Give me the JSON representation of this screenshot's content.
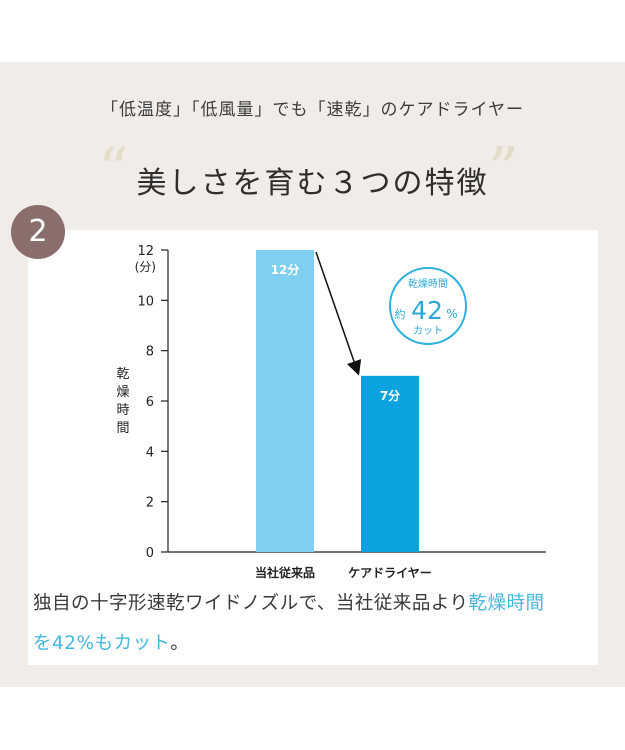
{
  "subtitle": "「低温度」「低風量」でも「速乾」のケアドライヤー",
  "heading": "美しさを育む３つの特徴",
  "quote_open": "“",
  "quote_close": "”",
  "badge": "2",
  "description": {
    "part1": "独自の十字形速乾ワイドノズルで、当社従来品より",
    "highlight1": "乾燥時間",
    "highlight2": "を42%",
    "part2": "もカット",
    "highlight3": "。"
  },
  "chart_data": {
    "type": "bar",
    "categories": [
      "当社従来品",
      "ケアドライヤー"
    ],
    "values": [
      12,
      7
    ],
    "value_labels": [
      "12分",
      "7分"
    ],
    "ylabel": "乾燥時間",
    "yunit_label": "(分)",
    "yticks": [
      0,
      2,
      4,
      6,
      8,
      10,
      12
    ],
    "ylim": [
      0,
      12
    ],
    "grid": false,
    "bar_colors": [
      "#7fd0f0",
      "#0aa3e0"
    ],
    "annotation": {
      "line1": "乾燥時間",
      "prefix": "約",
      "value": "42",
      "unit": "%",
      "line3": "カット"
    }
  },
  "colors": {
    "accent": "#45b7e0",
    "badge": "#8a6e6c",
    "panel": "#f2ece8"
  }
}
